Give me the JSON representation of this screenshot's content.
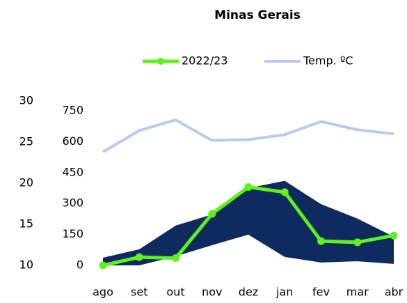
{
  "chart_data": {
    "type": "line",
    "title": "Minas Gerais",
    "categories": [
      "ago",
      "set",
      "out",
      "nov",
      "dez",
      "jan",
      "fev",
      "mar",
      "abr"
    ],
    "band": {
      "color": "#0f2a5f",
      "lower": [
        0,
        0,
        44,
        98,
        149,
        41,
        14,
        20,
        7
      ],
      "upper": [
        37,
        78,
        193,
        247,
        375,
        410,
        297,
        227,
        139
      ]
    },
    "series": [
      {
        "name": "2022/23",
        "color": "#5cf21a",
        "values": [
          0,
          40,
          35,
          250,
          380,
          355,
          118,
          112,
          145
        ],
        "marker": true
      },
      {
        "name": "Temp. ºC",
        "color": "#b9caf0",
        "values": [
          23.8,
          26.4,
          27.7,
          25.2,
          25.3,
          25.9,
          27.5,
          26.5,
          26.0
        ],
        "axis": "y2"
      }
    ],
    "ylim": [
      0,
      750
    ],
    "yticks": [
      0,
      150,
      300,
      450,
      600,
      750
    ],
    "y2lim": [
      10,
      30
    ],
    "y2ticks": [
      10,
      15,
      20,
      25,
      30
    ],
    "legend": "top"
  }
}
